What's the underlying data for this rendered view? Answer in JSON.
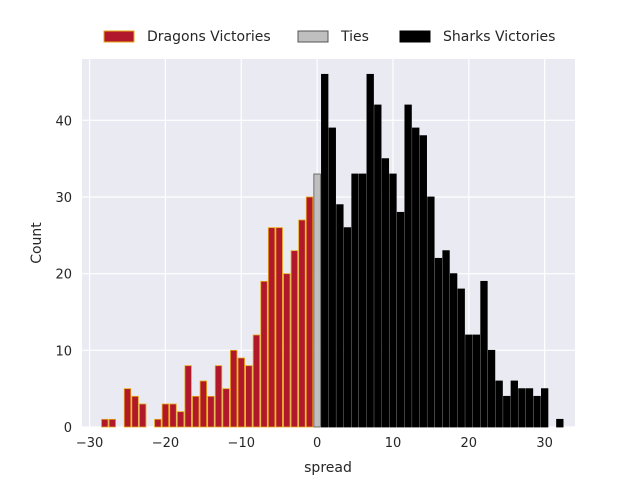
{
  "chart_data": {
    "type": "bar",
    "title": "",
    "xlabel": "spread",
    "ylabel": "Count",
    "xlim": [
      -31,
      34
    ],
    "ylim": [
      0,
      48
    ],
    "x_ticks": [
      -30,
      -20,
      -10,
      0,
      10,
      20,
      30
    ],
    "y_ticks": [
      0,
      10,
      20,
      30,
      40
    ],
    "grid": true,
    "legend_position": "top",
    "series": [
      {
        "name": "Dragons Victories",
        "color": "#b2182b",
        "edge_color": "#e6a817",
        "x": [
          -28,
          -27,
          -26,
          -25,
          -24,
          -23,
          -22,
          -21,
          -20,
          -19,
          -18,
          -17,
          -16,
          -15,
          -14,
          -13,
          -12,
          -11,
          -10,
          -9,
          -8,
          -7,
          -6,
          -5,
          -4,
          -3,
          -2,
          -1
        ],
        "values": [
          1,
          1,
          0,
          5,
          4,
          3,
          0,
          1,
          3,
          3,
          2,
          8,
          4,
          6,
          4,
          8,
          5,
          10,
          9,
          8,
          12,
          19,
          26,
          26,
          20,
          23,
          27,
          30
        ]
      },
      {
        "name": "Ties",
        "color": "#bfbfbf",
        "edge_color": "#555555",
        "x": [
          0
        ],
        "values": [
          33
        ]
      },
      {
        "name": "Sharks Victories",
        "color": "#000000",
        "edge_color": "#000000",
        "x": [
          1,
          2,
          3,
          4,
          5,
          6,
          7,
          8,
          9,
          10,
          11,
          12,
          13,
          14,
          15,
          16,
          17,
          18,
          19,
          20,
          21,
          22,
          23,
          24,
          25,
          26,
          27,
          28,
          29,
          30,
          31
        ],
        "values": [
          46,
          39,
          29,
          26,
          33,
          33,
          46,
          42,
          35,
          33,
          28,
          42,
          39,
          38,
          30,
          22,
          23,
          20,
          18,
          12,
          12,
          19,
          10,
          6,
          4,
          6,
          5,
          5,
          4,
          5,
          0
        ]
      },
      {
        "name": "",
        "color": "#000000",
        "edge_color": "#000000",
        "x": [
          32
        ],
        "values": [
          1
        ]
      }
    ]
  }
}
